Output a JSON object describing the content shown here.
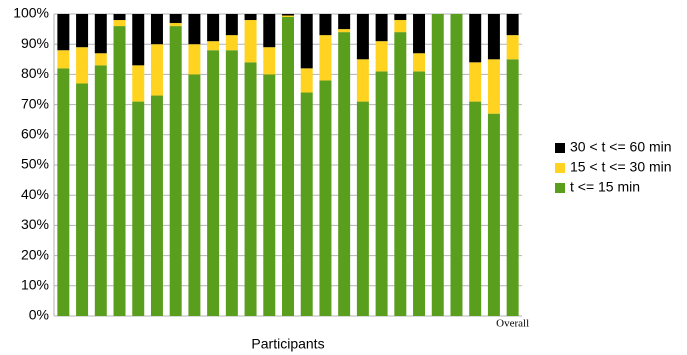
{
  "chart_data": {
    "type": "stacked_bar",
    "x_label": "Participants",
    "categories": [
      null,
      null,
      null,
      null,
      null,
      null,
      null,
      null,
      null,
      null,
      null,
      null,
      null,
      null,
      null,
      null,
      null,
      null,
      null,
      null,
      null,
      null,
      null,
      null,
      "Overall"
    ],
    "series": [
      {
        "name": "t <= 15 min",
        "color": "#5a9e1e",
        "values": [
          82,
          77,
          83,
          96,
          71,
          73,
          96,
          80,
          88,
          88,
          84,
          80,
          99,
          74,
          78,
          94,
          71,
          81,
          94,
          81,
          100,
          100,
          71,
          67,
          85
        ]
      },
      {
        "name": "15 < t <= 30 min",
        "color": "#ffd320",
        "values": [
          6,
          12,
          4,
          2,
          12,
          17,
          1,
          10,
          3,
          5,
          14,
          9,
          0.5,
          8,
          15,
          1,
          14,
          10,
          4,
          6,
          0,
          0,
          13,
          18,
          8
        ]
      },
      {
        "name": "30 < t <= 60 min",
        "color": "#000000",
        "values": [
          12,
          11,
          13,
          2,
          17,
          10,
          3,
          10,
          9,
          7,
          2,
          11,
          0.5,
          18,
          7,
          5,
          15,
          9,
          2,
          13,
          0,
          0,
          16,
          15,
          7
        ]
      }
    ],
    "ylim": [
      0,
      100
    ],
    "yticks": [
      {
        "value": 0,
        "label": "0%"
      },
      {
        "value": 10,
        "label": "10%"
      },
      {
        "value": 20,
        "label": "20%"
      },
      {
        "value": 30,
        "label": "30%"
      },
      {
        "value": 40,
        "label": "40%"
      },
      {
        "value": 50,
        "label": "50%"
      },
      {
        "value": 60,
        "label": "60%"
      },
      {
        "value": 70,
        "label": "70%"
      },
      {
        "value": 80,
        "label": "80%"
      },
      {
        "value": 90,
        "label": "90%"
      },
      {
        "value": 100,
        "label": "100%"
      }
    ],
    "grid": true,
    "legend": "right"
  }
}
